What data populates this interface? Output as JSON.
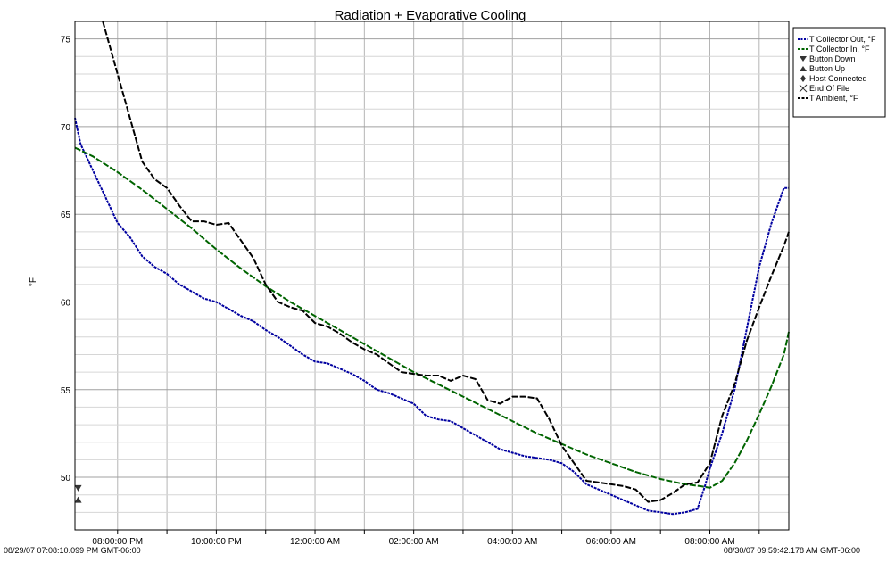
{
  "chart_data": {
    "type": "line",
    "title": "Radiation + Evaporative Cooling",
    "ylabel": "°F",
    "xlabel": "",
    "ylim": [
      47,
      76
    ],
    "yticks": [
      50,
      55,
      60,
      65,
      70,
      75
    ],
    "x_range_hours": [
      19.136,
      33.0
    ],
    "xticks": [
      {
        "label": "08:00:00 PM",
        "hour": 20
      },
      {
        "label": "10:00:00 PM",
        "hour": 22
      },
      {
        "label": "12:00:00 AM",
        "hour": 24
      },
      {
        "label": "02:00:00 AM",
        "hour": 26
      },
      {
        "label": "04:00:00 AM",
        "hour": 28
      },
      {
        "label": "06:00:00 AM",
        "hour": 30
      },
      {
        "label": "08:00:00 AM",
        "hour": 32
      }
    ],
    "start_label": "08/29/07 07:08:10.099 PM GMT-06:00",
    "end_label": "08/30/07 09:59:42.178 AM GMT-06:00",
    "grid": true,
    "legend_position": "top-right",
    "series": [
      {
        "name": "T Collector Out, °F",
        "color": "#0000a0",
        "style": "dotted",
        "points": [
          [
            19.136,
            70.5
          ],
          [
            19.25,
            69.0
          ],
          [
            19.5,
            67.5
          ],
          [
            19.75,
            66.0
          ],
          [
            20.0,
            64.5
          ],
          [
            20.25,
            63.7
          ],
          [
            20.5,
            62.6
          ],
          [
            20.75,
            62.0
          ],
          [
            21.0,
            61.6
          ],
          [
            21.25,
            61.0
          ],
          [
            21.5,
            60.6
          ],
          [
            21.75,
            60.2
          ],
          [
            22.0,
            60.0
          ],
          [
            22.25,
            59.6
          ],
          [
            22.5,
            59.2
          ],
          [
            22.75,
            58.9
          ],
          [
            23.0,
            58.4
          ],
          [
            23.25,
            58.0
          ],
          [
            23.5,
            57.5
          ],
          [
            23.75,
            57.0
          ],
          [
            24.0,
            56.6
          ],
          [
            24.25,
            56.5
          ],
          [
            24.5,
            56.2
          ],
          [
            24.75,
            55.9
          ],
          [
            25.0,
            55.5
          ],
          [
            25.25,
            55.0
          ],
          [
            25.5,
            54.8
          ],
          [
            25.75,
            54.5
          ],
          [
            26.0,
            54.2
          ],
          [
            26.25,
            53.5
          ],
          [
            26.5,
            53.3
          ],
          [
            26.75,
            53.2
          ],
          [
            27.0,
            52.8
          ],
          [
            27.25,
            52.4
          ],
          [
            27.5,
            52.0
          ],
          [
            27.75,
            51.6
          ],
          [
            28.0,
            51.4
          ],
          [
            28.25,
            51.2
          ],
          [
            28.5,
            51.1
          ],
          [
            28.75,
            51.0
          ],
          [
            29.0,
            50.8
          ],
          [
            29.25,
            50.3
          ],
          [
            29.5,
            49.6
          ],
          [
            29.75,
            49.3
          ],
          [
            30.0,
            49.0
          ],
          [
            30.25,
            48.7
          ],
          [
            30.5,
            48.4
          ],
          [
            30.75,
            48.1
          ],
          [
            31.0,
            48.0
          ],
          [
            31.25,
            47.9
          ],
          [
            31.5,
            48.0
          ],
          [
            31.75,
            48.2
          ],
          [
            31.9,
            49.5
          ],
          [
            32.0,
            50.5
          ],
          [
            32.25,
            52.5
          ],
          [
            32.5,
            55.0
          ],
          [
            32.75,
            58.5
          ],
          [
            33.0,
            62.0
          ],
          [
            33.25,
            64.5
          ],
          [
            33.5,
            66.5
          ],
          [
            33.6,
            66.5
          ]
        ]
      },
      {
        "name": "T Collector In, °F",
        "color": "#006400",
        "style": "dashed",
        "points": [
          [
            19.136,
            68.8
          ],
          [
            19.5,
            68.3
          ],
          [
            20.0,
            67.4
          ],
          [
            20.5,
            66.4
          ],
          [
            21.0,
            65.3
          ],
          [
            21.5,
            64.2
          ],
          [
            22.0,
            63.0
          ],
          [
            22.5,
            61.9
          ],
          [
            23.0,
            60.9
          ],
          [
            23.5,
            60.0
          ],
          [
            24.0,
            59.2
          ],
          [
            24.5,
            58.4
          ],
          [
            25.0,
            57.6
          ],
          [
            25.5,
            56.8
          ],
          [
            26.0,
            56.0
          ],
          [
            26.5,
            55.3
          ],
          [
            27.0,
            54.6
          ],
          [
            27.5,
            53.9
          ],
          [
            28.0,
            53.2
          ],
          [
            28.5,
            52.5
          ],
          [
            29.0,
            51.9
          ],
          [
            29.5,
            51.3
          ],
          [
            30.0,
            50.8
          ],
          [
            30.5,
            50.3
          ],
          [
            31.0,
            49.9
          ],
          [
            31.5,
            49.6
          ],
          [
            31.8,
            49.5
          ],
          [
            32.0,
            49.4
          ],
          [
            32.25,
            49.8
          ],
          [
            32.5,
            50.8
          ],
          [
            32.75,
            52.1
          ],
          [
            33.0,
            53.6
          ],
          [
            33.25,
            55.2
          ],
          [
            33.5,
            57.0
          ],
          [
            33.6,
            58.3
          ]
        ]
      },
      {
        "name": "T Ambient, °F",
        "color": "#000000",
        "style": "dashed",
        "points": [
          [
            19.7,
            76.0
          ],
          [
            20.0,
            73.0
          ],
          [
            20.25,
            70.5
          ],
          [
            20.5,
            68.0
          ],
          [
            20.75,
            67.0
          ],
          [
            21.0,
            66.5
          ],
          [
            21.25,
            65.5
          ],
          [
            21.5,
            64.6
          ],
          [
            21.75,
            64.6
          ],
          [
            22.0,
            64.4
          ],
          [
            22.25,
            64.5
          ],
          [
            22.5,
            63.5
          ],
          [
            22.75,
            62.5
          ],
          [
            23.0,
            61.0
          ],
          [
            23.25,
            60.0
          ],
          [
            23.5,
            59.7
          ],
          [
            23.75,
            59.5
          ],
          [
            24.0,
            58.8
          ],
          [
            24.25,
            58.6
          ],
          [
            24.5,
            58.2
          ],
          [
            24.75,
            57.7
          ],
          [
            25.0,
            57.3
          ],
          [
            25.25,
            57.0
          ],
          [
            25.5,
            56.5
          ],
          [
            25.75,
            56.0
          ],
          [
            26.0,
            55.9
          ],
          [
            26.25,
            55.8
          ],
          [
            26.5,
            55.8
          ],
          [
            26.75,
            55.5
          ],
          [
            27.0,
            55.8
          ],
          [
            27.25,
            55.6
          ],
          [
            27.5,
            54.4
          ],
          [
            27.75,
            54.2
          ],
          [
            28.0,
            54.6
          ],
          [
            28.25,
            54.6
          ],
          [
            28.5,
            54.5
          ],
          [
            28.75,
            53.3
          ],
          [
            29.0,
            51.8
          ],
          [
            29.25,
            50.8
          ],
          [
            29.5,
            49.8
          ],
          [
            29.75,
            49.7
          ],
          [
            30.0,
            49.6
          ],
          [
            30.25,
            49.5
          ],
          [
            30.5,
            49.3
          ],
          [
            30.75,
            48.6
          ],
          [
            31.0,
            48.7
          ],
          [
            31.25,
            49.1
          ],
          [
            31.5,
            49.6
          ],
          [
            31.75,
            49.7
          ],
          [
            32.0,
            50.8
          ],
          [
            32.25,
            53.5
          ],
          [
            32.5,
            55.3
          ],
          [
            32.75,
            57.8
          ],
          [
            33.0,
            59.7
          ],
          [
            33.25,
            61.5
          ],
          [
            33.5,
            63.2
          ],
          [
            33.6,
            64.0
          ]
        ]
      }
    ],
    "markers": [
      {
        "name": "Button Down",
        "symbol": "triangle-down",
        "hour": 19.2,
        "value": 49.4
      },
      {
        "name": "Button Up",
        "symbol": "triangle-up",
        "hour": 19.2,
        "value": 48.7
      }
    ],
    "legend": [
      {
        "label": "T Collector Out, °F",
        "symbol": "dotted",
        "color": "#0000a0"
      },
      {
        "label": "T Collector In, °F",
        "symbol": "dashed",
        "color": "#006400"
      },
      {
        "label": "Button Down",
        "symbol": "triangle-down",
        "color": "#333333"
      },
      {
        "label": "Button Up",
        "symbol": "triangle-up",
        "color": "#333333"
      },
      {
        "label": "Host Connected",
        "symbol": "diamond",
        "color": "#333333"
      },
      {
        "label": "End Of File",
        "symbol": "cross",
        "color": "#333333"
      },
      {
        "label": "T Ambient, °F",
        "symbol": "dashed",
        "color": "#000000"
      }
    ]
  }
}
